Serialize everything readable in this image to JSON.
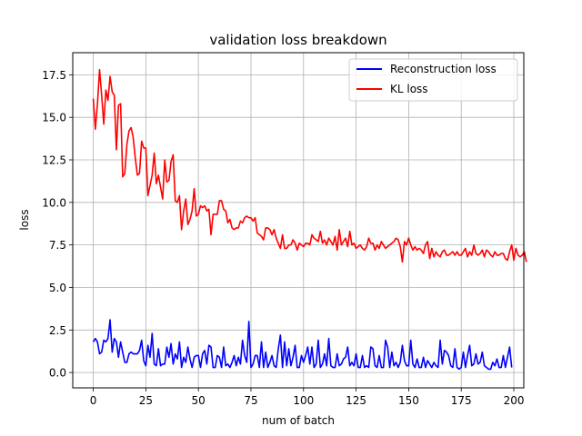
{
  "chart_data": {
    "type": "line",
    "title": "validation loss breakdown",
    "xlabel": "num of batch",
    "ylabel": "loss",
    "xlim": [
      -9.75,
      204.75
    ],
    "ylim": [
      -0.9,
      18.8
    ],
    "xticks": [
      0,
      25,
      50,
      75,
      100,
      125,
      150,
      175,
      200
    ],
    "xtick_labels": [
      "0",
      "25",
      "50",
      "75",
      "100",
      "125",
      "150",
      "175",
      "200"
    ],
    "yticks": [
      0.0,
      2.5,
      5.0,
      7.5,
      10.0,
      12.5,
      15.0,
      17.5
    ],
    "ytick_labels": [
      "0.0",
      "2.5",
      "5.0",
      "7.5",
      "10.0",
      "12.5",
      "15.0",
      "17.5"
    ],
    "grid": true,
    "legend_position": "top-right",
    "series": [
      {
        "name": "Reconstruction loss",
        "color": "#0000ff",
        "x_start": 0,
        "x_step": 1,
        "values": [
          1.8,
          2.0,
          1.8,
          1.1,
          1.2,
          1.9,
          1.8,
          2.0,
          3.1,
          1.2,
          2.0,
          1.8,
          0.9,
          1.8,
          1.2,
          0.6,
          0.6,
          1.1,
          1.2,
          1.1,
          1.1,
          1.1,
          1.3,
          1.9,
          0.7,
          0.4,
          1.6,
          0.9,
          2.3,
          0.5,
          0.4,
          1.4,
          0.4,
          0.5,
          0.5,
          1.5,
          0.9,
          1.7,
          0.5,
          1.1,
          0.8,
          1.8,
          0.3,
          0.9,
          0.6,
          1.5,
          0.8,
          0.3,
          0.9,
          1.0,
          1.0,
          0.3,
          1.1,
          1.3,
          0.5,
          1.6,
          1.5,
          0.3,
          0.3,
          1.0,
          0.9,
          0.3,
          1.5,
          0.4,
          0.5,
          0.3,
          0.6,
          1.0,
          0.4,
          0.9,
          0.5,
          1.9,
          1.0,
          0.6,
          3.0,
          0.3,
          0.5,
          1.0,
          1.0,
          0.3,
          1.8,
          0.3,
          1.2,
          0.3,
          0.6,
          1.0,
          0.4,
          0.3,
          1.4,
          2.2,
          0.3,
          1.8,
          0.4,
          1.4,
          0.4,
          0.9,
          1.6,
          0.3,
          0.3,
          1.0,
          0.6,
          1.0,
          1.5,
          0.5,
          1.5,
          0.3,
          0.5,
          1.9,
          0.3,
          0.5,
          1.1,
          0.4,
          2.0,
          0.4,
          0.3,
          0.3,
          1.1,
          0.4,
          0.5,
          0.8,
          0.9,
          1.5,
          0.4,
          0.6,
          0.4,
          1.1,
          0.3,
          0.3,
          1.0,
          0.3,
          0.4,
          0.3,
          1.5,
          1.4,
          0.4,
          0.3,
          1.0,
          0.3,
          0.3,
          1.9,
          1.5,
          0.3,
          1.2,
          0.4,
          0.6,
          0.3,
          0.6,
          1.6,
          0.7,
          0.4,
          0.4,
          1.9,
          0.5,
          0.3,
          0.8,
          0.3,
          0.3,
          0.9,
          0.3,
          0.7,
          0.5,
          0.3,
          0.6,
          0.4,
          0.3,
          1.9,
          0.5,
          1.3,
          1.2,
          1.0,
          0.4,
          0.3,
          1.4,
          0.3,
          0.2,
          0.3,
          1.2,
          0.3,
          1.0,
          1.6,
          0.4,
          0.5,
          1.1,
          0.5,
          0.6,
          1.2,
          0.4,
          0.3,
          0.2,
          0.2,
          0.6,
          0.4,
          0.8,
          0.3,
          0.3,
          1.0,
          0.3,
          0.9,
          1.5,
          0.3
        ]
      },
      {
        "name": "KL loss",
        "color": "#ff0000",
        "x_start": 0,
        "x_step": 1,
        "values": [
          16.1,
          14.3,
          15.8,
          17.8,
          16.3,
          14.6,
          16.6,
          16.0,
          17.4,
          16.5,
          16.3,
          13.1,
          15.7,
          15.8,
          11.5,
          11.7,
          13.4,
          14.2,
          14.4,
          13.8,
          12.6,
          11.6,
          11.7,
          13.6,
          13.2,
          13.2,
          10.4,
          11.0,
          11.6,
          12.9,
          11.1,
          11.6,
          10.9,
          10.2,
          12.5,
          11.2,
          11.3,
          12.4,
          12.8,
          10.1,
          10.0,
          10.4,
          8.4,
          9.5,
          10.2,
          8.7,
          9.0,
          9.5,
          10.8,
          9.2,
          9.3,
          9.8,
          9.7,
          9.8,
          9.5,
          9.6,
          8.1,
          9.3,
          9.3,
          9.3,
          10.1,
          10.1,
          9.6,
          9.5,
          8.8,
          9.0,
          8.5,
          8.4,
          8.5,
          8.5,
          8.9,
          8.8,
          9.1,
          9.2,
          9.1,
          9.1,
          8.9,
          9.1,
          8.2,
          8.1,
          8.0,
          7.8,
          8.5,
          8.5,
          8.4,
          8.1,
          8.4,
          7.9,
          7.6,
          7.3,
          8.1,
          7.3,
          7.3,
          7.5,
          7.5,
          7.8,
          7.6,
          7.2,
          7.6,
          7.5,
          7.4,
          7.6,
          7.6,
          7.5,
          8.1,
          7.9,
          7.8,
          7.7,
          8.3,
          7.6,
          7.8,
          7.5,
          7.9,
          7.7,
          7.5,
          8.0,
          7.2,
          8.4,
          7.5,
          7.7,
          7.9,
          7.4,
          8.3,
          7.5,
          7.6,
          7.3,
          7.4,
          7.5,
          7.3,
          7.2,
          7.4,
          7.9,
          7.6,
          7.6,
          7.2,
          7.5,
          7.3,
          7.7,
          7.5,
          7.3,
          7.4,
          7.5,
          7.6,
          7.7,
          7.9,
          7.8,
          7.4,
          6.5,
          7.7,
          7.5,
          7.9,
          7.5,
          7.2,
          7.4,
          7.2,
          7.3,
          7.2,
          7.0,
          7.5,
          7.7,
          6.7,
          7.3,
          6.8,
          7.1,
          6.9,
          6.8,
          7.1,
          7.2,
          6.9,
          6.9,
          7.0,
          7.1,
          6.9,
          7.1,
          6.9,
          6.9,
          7.1,
          7.3,
          6.8,
          7.1,
          6.9,
          7.5,
          7.0,
          6.9,
          7.0,
          7.2,
          6.8,
          7.2,
          7.1,
          6.9,
          6.8,
          7.1,
          6.9,
          6.9,
          7.0,
          7.0,
          6.7,
          6.6,
          7.1,
          7.5,
          6.6,
          7.3,
          6.9,
          6.8,
          6.9,
          7.1,
          6.5
        ]
      }
    ]
  }
}
